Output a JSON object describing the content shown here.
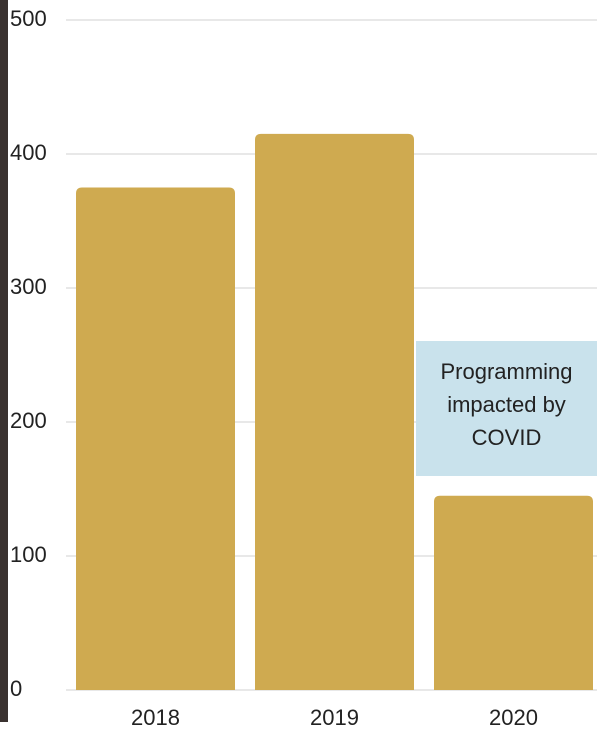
{
  "chart_data": {
    "type": "bar",
    "categories": [
      "2018",
      "2019",
      "2020"
    ],
    "values": [
      375,
      415,
      145
    ],
    "color": "#cfaa50",
    "ylim": [
      0,
      500
    ],
    "yticks": [
      0,
      100,
      200,
      300,
      400,
      500
    ],
    "grid": true,
    "annotation": "Programming impacted by COVID"
  }
}
